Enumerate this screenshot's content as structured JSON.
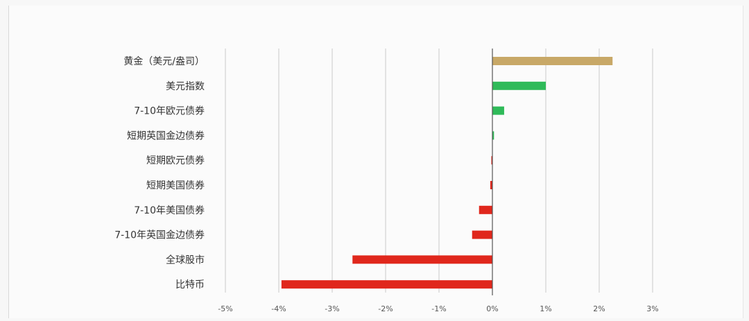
{
  "chart_data": {
    "type": "bar",
    "orientation": "horizontal",
    "title": "",
    "xlabel": "",
    "ylabel": "",
    "xlim": [
      -5,
      3
    ],
    "xticks": [
      "-5%",
      "-4%",
      "-3%",
      "-2%",
      "-1%",
      "0%",
      "1%",
      "2%",
      "3%"
    ],
    "grid": true,
    "categories": [
      "黄金（美元/盎司）",
      "美元指数",
      "7-10年欧元债券",
      "短期英国金边债券",
      "短期欧元债券",
      "短期美国债券",
      "7-10年美国债券",
      "7-10年英国金边债券",
      "全球股市",
      "比特币"
    ],
    "values": [
      2.25,
      1.0,
      0.22,
      0.03,
      -0.02,
      -0.04,
      -0.25,
      -0.38,
      -2.62,
      -3.95
    ],
    "bar_colors": [
      "#c8a867",
      "#2fba59",
      "#2fba59",
      "#2fba59",
      "#e0271c",
      "#e0271c",
      "#e0271c",
      "#e0271c",
      "#e0271c",
      "#e0271c"
    ]
  }
}
